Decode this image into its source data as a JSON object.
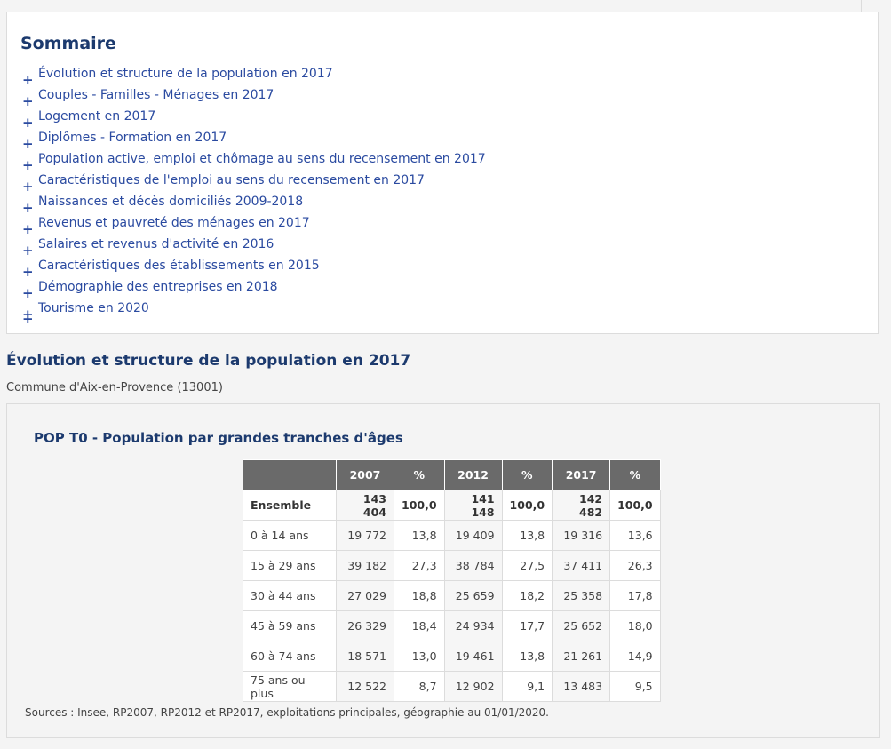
{
  "sommaire": {
    "title": "Sommaire",
    "items": [
      "Évolution et structure de la population en 2017",
      "Couples - Familles - Ménages en 2017",
      "Logement en 2017",
      "Diplômes - Formation en 2017",
      "Population active, emploi et chômage au sens du recensement en 2017",
      "Caractéristiques de l'emploi au sens du recensement en 2017",
      "Naissances et décès domiciliés 2009-2018",
      "Revenus et pauvreté des ménages en 2017",
      "Salaires et revenus d'activité en 2016",
      "Caractéristiques des établissements en 2015",
      "Démographie des entreprises en 2018",
      "Tourisme en 2020"
    ],
    "expand_symbol": "+"
  },
  "section": {
    "title": "Évolution et structure de la population en 2017",
    "commune": "Commune d'Aix-en-Provence (13001)"
  },
  "table": {
    "title": "POP T0 - Population par grandes tranches d'âges",
    "headers": [
      "",
      "2007",
      "%",
      "2012",
      "%",
      "2017",
      "%"
    ],
    "rows": [
      [
        "Ensemble",
        "143 404",
        "100,0",
        "141 148",
        "100,0",
        "142 482",
        "100,0"
      ],
      [
        "0 à 14 ans",
        "19 772",
        "13,8",
        "19 409",
        "13,8",
        "19 316",
        "13,6"
      ],
      [
        "15 à 29 ans",
        "39 182",
        "27,3",
        "38 784",
        "27,5",
        "37 411",
        "26,3"
      ],
      [
        "30 à 44 ans",
        "27 029",
        "18,8",
        "25 659",
        "18,2",
        "25 358",
        "17,8"
      ],
      [
        "45 à 59 ans",
        "26 329",
        "18,4",
        "24 934",
        "17,7",
        "25 652",
        "18,0"
      ],
      [
        "60 à 74 ans",
        "18 571",
        "13,0",
        "19 461",
        "13,8",
        "21 261",
        "14,9"
      ],
      [
        "75 ans ou plus",
        "12 522",
        "8,7",
        "12 902",
        "9,1",
        "13 483",
        "9,5"
      ]
    ],
    "sources": "Sources : Insee, RP2007, RP2012 et RP2017, exploitations principales, géographie au 01/01/2020."
  },
  "colors": {
    "heading": "#1c3a6e",
    "link": "#2a4aa0",
    "table_header_bg": "#6a6a6a"
  }
}
